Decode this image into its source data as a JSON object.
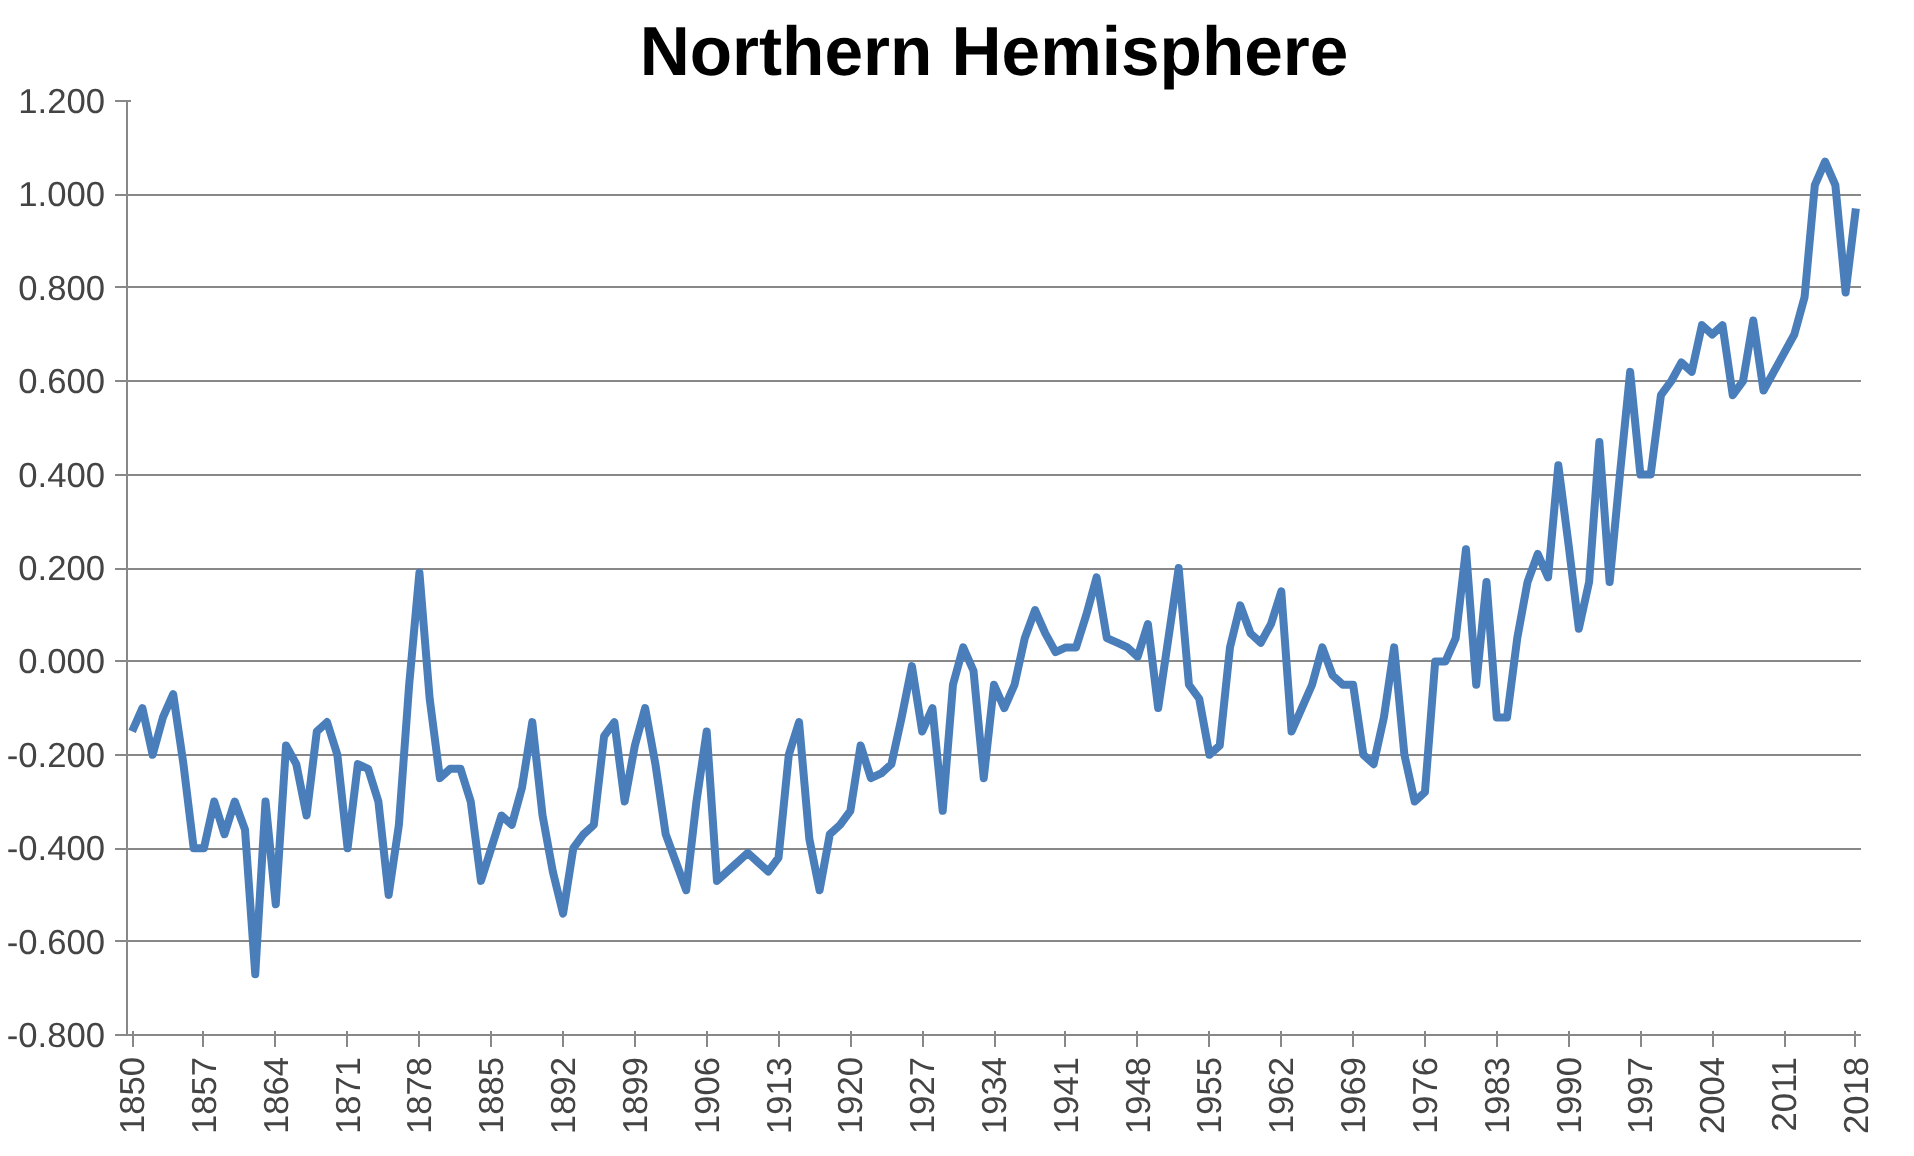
{
  "chart_data": {
    "type": "line",
    "title": "Northern Hemisphere",
    "x": [
      1850,
      1851,
      1852,
      1853,
      1854,
      1855,
      1856,
      1857,
      1858,
      1859,
      1860,
      1861,
      1862,
      1863,
      1864,
      1865,
      1866,
      1867,
      1868,
      1869,
      1870,
      1871,
      1872,
      1873,
      1874,
      1875,
      1876,
      1877,
      1878,
      1879,
      1880,
      1881,
      1882,
      1883,
      1884,
      1885,
      1886,
      1887,
      1888,
      1889,
      1890,
      1891,
      1892,
      1893,
      1894,
      1895,
      1896,
      1897,
      1898,
      1899,
      1900,
      1901,
      1902,
      1903,
      1904,
      1905,
      1906,
      1907,
      1908,
      1909,
      1910,
      1911,
      1912,
      1913,
      1914,
      1915,
      1916,
      1917,
      1918,
      1919,
      1920,
      1921,
      1922,
      1923,
      1924,
      1925,
      1926,
      1927,
      1928,
      1929,
      1930,
      1931,
      1932,
      1933,
      1934,
      1935,
      1936,
      1937,
      1938,
      1939,
      1940,
      1941,
      1942,
      1943,
      1944,
      1945,
      1946,
      1947,
      1948,
      1949,
      1950,
      1951,
      1952,
      1953,
      1954,
      1955,
      1956,
      1957,
      1958,
      1959,
      1960,
      1961,
      1962,
      1963,
      1964,
      1965,
      1966,
      1967,
      1968,
      1969,
      1970,
      1971,
      1972,
      1973,
      1974,
      1975,
      1976,
      1977,
      1978,
      1979,
      1980,
      1981,
      1982,
      1983,
      1984,
      1985,
      1986,
      1987,
      1988,
      1989,
      1990,
      1991,
      1992,
      1993,
      1994,
      1995,
      1996,
      1997,
      1998,
      1999,
      2000,
      2001,
      2002,
      2003,
      2004,
      2005,
      2006,
      2007,
      2008,
      2009,
      2010,
      2011,
      2012,
      2013,
      2014,
      2015,
      2016,
      2017,
      2018
    ],
    "series": [
      {
        "color": "#4a7ebb",
        "values": [
          -0.15,
          -0.1,
          -0.2,
          -0.12,
          -0.07,
          -0.22,
          -0.4,
          -0.4,
          -0.3,
          -0.37,
          -0.3,
          -0.36,
          -0.67,
          -0.3,
          -0.52,
          -0.18,
          -0.22,
          -0.33,
          -0.15,
          -0.13,
          -0.2,
          -0.4,
          -0.22,
          -0.23,
          -0.3,
          -0.5,
          -0.35,
          -0.05,
          0.19,
          -0.08,
          -0.25,
          -0.23,
          -0.23,
          -0.3,
          -0.47,
          -0.4,
          -0.33,
          -0.35,
          -0.27,
          -0.13,
          -0.33,
          -0.45,
          -0.54,
          -0.4,
          -0.37,
          -0.35,
          -0.16,
          -0.13,
          -0.3,
          -0.18,
          -0.1,
          -0.22,
          -0.37,
          -0.43,
          -0.49,
          -0.3,
          -0.15,
          -0.47,
          -0.45,
          -0.43,
          -0.41,
          -0.43,
          -0.45,
          -0.42,
          -0.2,
          -0.13,
          -0.38,
          -0.49,
          -0.37,
          -0.35,
          -0.32,
          -0.18,
          -0.25,
          -0.24,
          -0.22,
          -0.12,
          -0.01,
          -0.15,
          -0.1,
          -0.32,
          -0.05,
          0.03,
          -0.02,
          -0.25,
          -0.05,
          -0.1,
          -0.05,
          0.05,
          0.11,
          0.06,
          0.02,
          0.03,
          0.03,
          0.1,
          0.18,
          0.05,
          0.04,
          0.03,
          0.01,
          0.08,
          -0.1,
          0.05,
          0.2,
          -0.05,
          -0.08,
          -0.2,
          -0.18,
          0.03,
          0.12,
          0.06,
          0.04,
          0.08,
          0.15,
          -0.15,
          -0.1,
          -0.05,
          0.03,
          -0.03,
          -0.05,
          -0.05,
          -0.2,
          -0.22,
          -0.12,
          0.03,
          -0.2,
          -0.3,
          -0.28,
          0.0,
          0.0,
          0.05,
          0.24,
          -0.05,
          0.17,
          -0.12,
          -0.12,
          0.05,
          0.17,
          0.23,
          0.18,
          0.42,
          0.25,
          0.07,
          0.17,
          0.47,
          0.17,
          0.4,
          0.62,
          0.4,
          0.4,
          0.57,
          0.6,
          0.64,
          0.62,
          0.72,
          0.7,
          0.72,
          0.57,
          0.6,
          0.73,
          0.58,
          0.62,
          0.66,
          0.7,
          0.78,
          1.02,
          1.07,
          1.02,
          0.79,
          0.97
        ]
      }
    ],
    "xlim": [
      1849.5,
      2018.5
    ],
    "xticks": [
      1850,
      1857,
      1864,
      1871,
      1878,
      1885,
      1892,
      1899,
      1906,
      1913,
      1920,
      1927,
      1934,
      1941,
      1948,
      1955,
      1962,
      1969,
      1976,
      1983,
      1990,
      1997,
      2004,
      2011,
      2018
    ],
    "ylim": [
      -0.8,
      1.2
    ],
    "yticks": [
      {
        "value": -0.8,
        "label": "-0.800"
      },
      {
        "value": -0.6,
        "label": "-0.600"
      },
      {
        "value": -0.4,
        "label": "-0.400"
      },
      {
        "value": -0.2,
        "label": "-0.200"
      },
      {
        "value": 0,
        "label": "0.000"
      },
      {
        "value": 0.2,
        "label": "0.200"
      },
      {
        "value": 0.4,
        "label": "0.400"
      },
      {
        "value": 0.6,
        "label": "0.600"
      },
      {
        "value": 0.8,
        "label": "0.800"
      },
      {
        "value": 1.0,
        "label": "1.000"
      },
      {
        "value": 1.2,
        "label": "1.200"
      }
    ],
    "grid": "y",
    "line_style": "solid"
  }
}
